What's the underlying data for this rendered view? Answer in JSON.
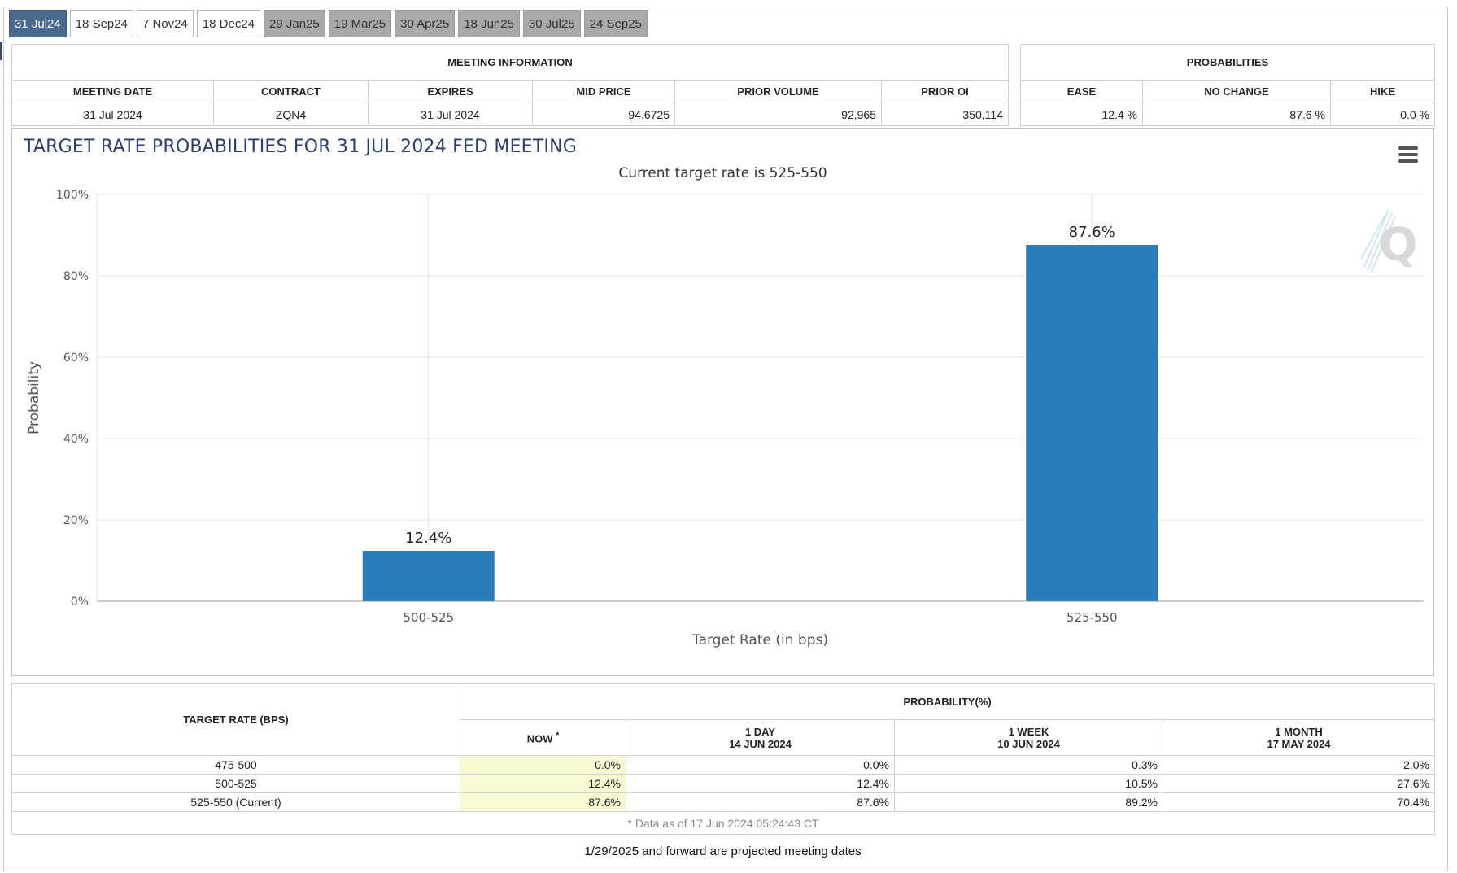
{
  "tabs": [
    {
      "label": "31 Jul24",
      "state": "active"
    },
    {
      "label": "18 Sep24",
      "state": "normal"
    },
    {
      "label": "7 Nov24",
      "state": "normal"
    },
    {
      "label": "18 Dec24",
      "state": "normal"
    },
    {
      "label": "29 Jan25",
      "state": "projected"
    },
    {
      "label": "19 Mar25",
      "state": "projected"
    },
    {
      "label": "30 Apr25",
      "state": "projected"
    },
    {
      "label": "18 Jun25",
      "state": "projected"
    },
    {
      "label": "30 Jul25",
      "state": "projected"
    },
    {
      "label": "24 Sep25",
      "state": "projected"
    }
  ],
  "meeting_info": {
    "header": "MEETING INFORMATION",
    "columns": [
      "MEETING DATE",
      "CONTRACT",
      "EXPIRES",
      "MID PRICE",
      "PRIOR VOLUME",
      "PRIOR OI"
    ],
    "values": [
      "31 Jul 2024",
      "ZQN4",
      "31 Jul 2024",
      "94.6725",
      "92,965",
      "350,114"
    ]
  },
  "probabilities": {
    "header": "PROBABILITIES",
    "columns": [
      "EASE",
      "NO CHANGE",
      "HIKE"
    ],
    "values": [
      "12.4 %",
      "87.6 %",
      "0.0 %"
    ]
  },
  "chart": {
    "title": "TARGET RATE PROBABILITIES FOR 31 JUL 2024 FED MEETING",
    "subtitle": "Current target rate is 525-550",
    "menu_icon": "hamburger-menu-icon",
    "watermark_icon": "q-logo-icon",
    "bar_color": "#2a7db8"
  },
  "chart_data": {
    "type": "bar",
    "title": "TARGET RATE PROBABILITIES FOR 31 JUL 2024 FED MEETING",
    "subtitle": "Current target rate is 525-550",
    "categories": [
      "500-525",
      "525-550"
    ],
    "values": [
      12.4,
      87.6
    ],
    "data_labels": [
      "12.4%",
      "87.6%"
    ],
    "xlabel": "Target Rate (in bps)",
    "ylabel": "Probability",
    "ylim": [
      0,
      100
    ],
    "yticks": [
      0,
      20,
      40,
      60,
      80,
      100
    ],
    "ytick_labels": [
      "0%",
      "20%",
      "40%",
      "60%",
      "80%",
      "100%"
    ],
    "grid": true,
    "legend": "none"
  },
  "rates_table": {
    "target_header": "TARGET RATE (BPS)",
    "prob_header": "PROBABILITY(%)",
    "now_header": "NOW",
    "now_marker": "*",
    "periods": [
      {
        "label": "1 DAY",
        "date": "14 JUN 2024"
      },
      {
        "label": "1 WEEK",
        "date": "10 JUN 2024"
      },
      {
        "label": "1 MONTH",
        "date": "17 MAY 2024"
      }
    ],
    "rows": [
      {
        "rate": "475-500",
        "now": "0.0%",
        "day": "0.0%",
        "week": "0.3%",
        "month": "2.0%"
      },
      {
        "rate": "500-525",
        "now": "12.4%",
        "day": "12.4%",
        "week": "10.5%",
        "month": "27.6%"
      },
      {
        "rate": "525-550 (Current)",
        "now": "87.6%",
        "day": "87.6%",
        "week": "89.2%",
        "month": "70.4%"
      }
    ],
    "note": "* Data as of 17 Jun 2024 05:24:43 CT"
  },
  "footer_note": "1/29/2025 and forward are projected meeting dates"
}
